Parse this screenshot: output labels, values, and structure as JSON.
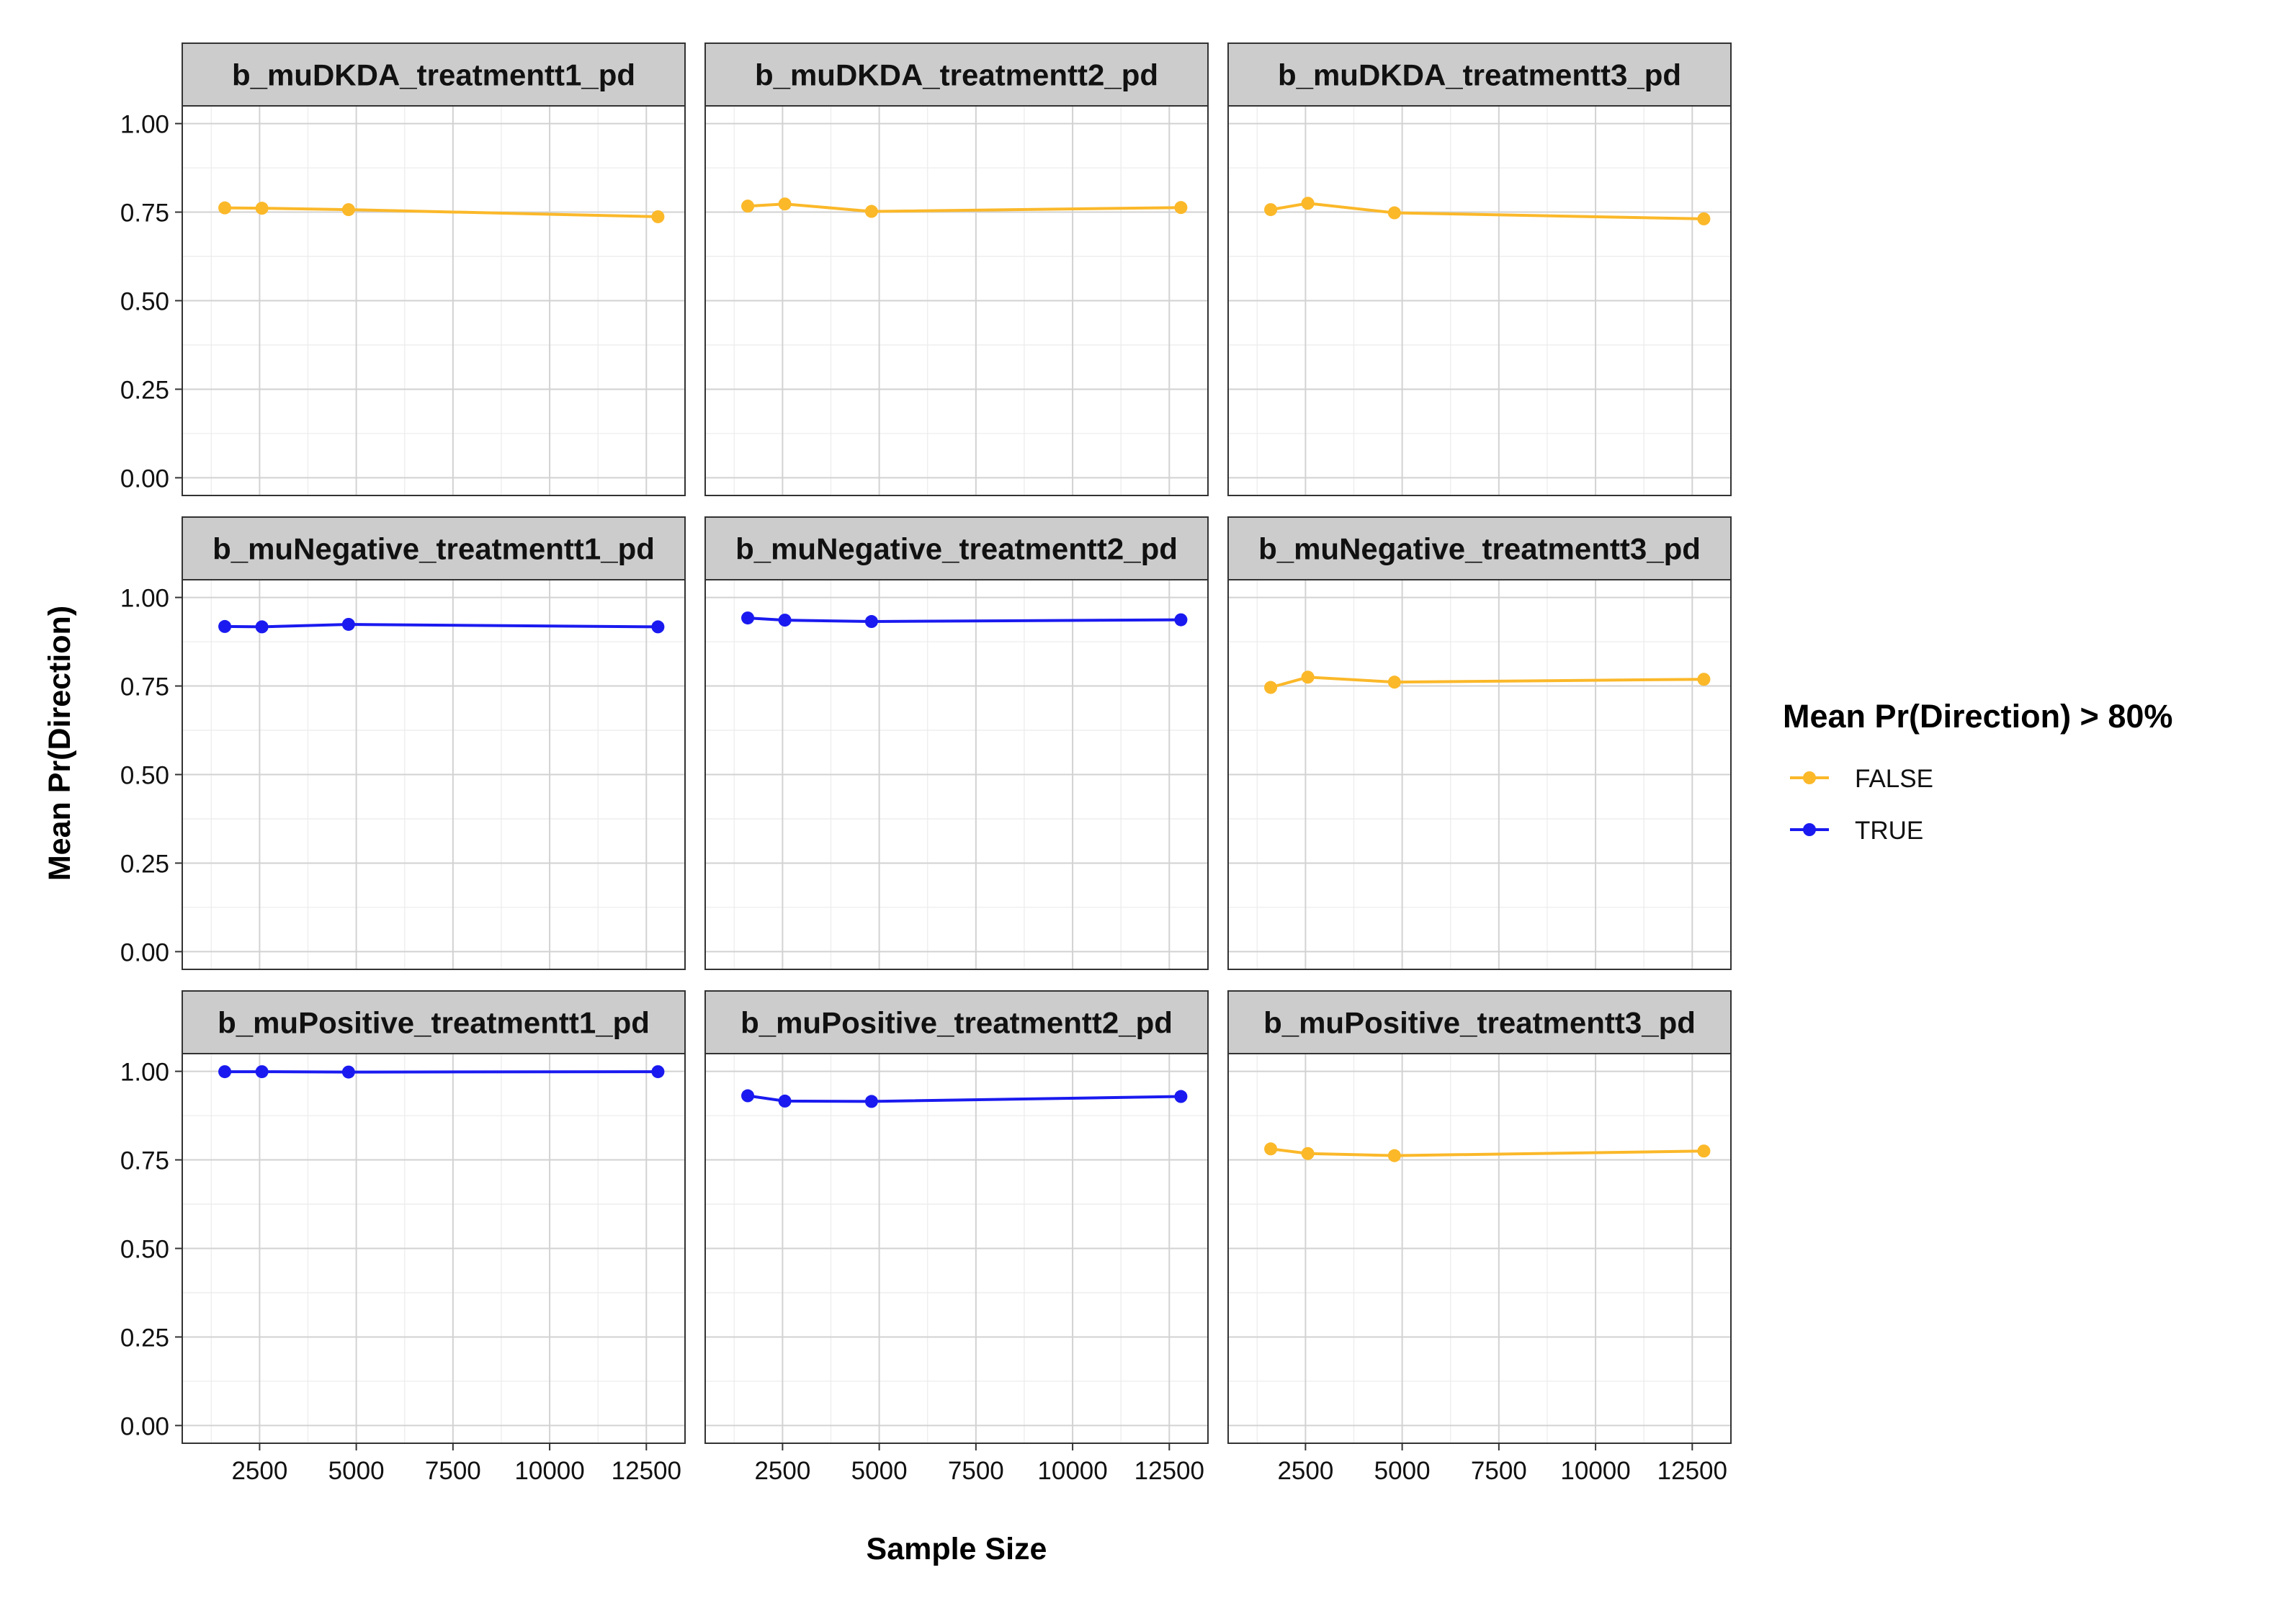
{
  "chart_data": {
    "type": "line",
    "facet_layout": "3x3 grid",
    "xlabel": "Sample Size",
    "ylabel": "Mean Pr(Direction)",
    "xlim": [
      500,
      13500
    ],
    "ylim": [
      -0.05,
      1.05
    ],
    "x_ticks": [
      2500,
      5000,
      7500,
      10000,
      12500
    ],
    "x_tick_labels": [
      "2500",
      "5000",
      "7500",
      "10000",
      "12500"
    ],
    "y_ticks": [
      0,
      0.25,
      0.5,
      0.75,
      1
    ],
    "y_tick_labels": [
      "0.00",
      "0.25",
      "0.50",
      "0.75",
      "1.00"
    ],
    "x": [
      1600,
      2560,
      4800,
      12800
    ],
    "grid": true,
    "legend": {
      "title": "Mean Pr(Direction) > 80%",
      "position": "right",
      "entries": [
        {
          "label": "FALSE",
          "color": "#FBB829"
        },
        {
          "label": "TRUE",
          "color": "#1A1AF0"
        }
      ]
    },
    "panels": [
      {
        "title": "b_muDKDA_treatmentt1_pd",
        "group": "FALSE",
        "values": [
          0.762,
          0.761,
          0.757,
          0.737
        ]
      },
      {
        "title": "b_muDKDA_treatmentt2_pd",
        "group": "FALSE",
        "values": [
          0.767,
          0.773,
          0.752,
          0.763
        ]
      },
      {
        "title": "b_muDKDA_treatmentt3_pd",
        "group": "FALSE",
        "values": [
          0.757,
          0.775,
          0.748,
          0.731
        ]
      },
      {
        "title": "b_muNegative_treatmentt1_pd",
        "group": "TRUE",
        "values": [
          0.918,
          0.917,
          0.924,
          0.917
        ]
      },
      {
        "title": "b_muNegative_treatmentt2_pd",
        "group": "TRUE",
        "values": [
          0.942,
          0.936,
          0.932,
          0.937
        ]
      },
      {
        "title": "b_muNegative_treatmentt3_pd",
        "group": "FALSE",
        "values": [
          0.746,
          0.775,
          0.761,
          0.769
        ]
      },
      {
        "title": "b_muPositive_treatmentt1_pd",
        "group": "TRUE",
        "values": [
          0.999,
          0.999,
          0.998,
          0.999
        ]
      },
      {
        "title": "b_muPositive_treatmentt2_pd",
        "group": "TRUE",
        "values": [
          0.931,
          0.916,
          0.915,
          0.929
        ]
      },
      {
        "title": "b_muPositive_treatmentt3_pd",
        "group": "FALSE",
        "values": [
          0.781,
          0.768,
          0.762,
          0.775
        ]
      }
    ]
  }
}
